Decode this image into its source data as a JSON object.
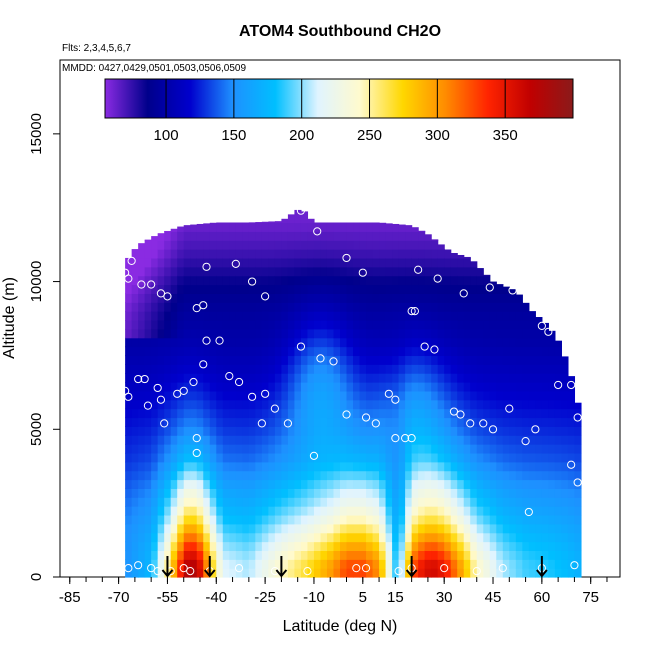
{
  "chart_data": {
    "type": "heatmap",
    "title": "ATOM4 Southbound CH2O",
    "flights_note": "Flts: 2,3,4,5,6,7",
    "dates_note": "MMDD: 0427,0429,0501,0503,0506,0509",
    "xlabel": "Latitude (deg N)",
    "ylabel": "Altitude (m)",
    "xlim": [
      -88,
      84
    ],
    "ylim": [
      0,
      17500
    ],
    "xticks": [
      -85,
      -70,
      -55,
      -40,
      -25,
      -10,
      5,
      15,
      30,
      45,
      60,
      75
    ],
    "yticks": [
      0,
      5000,
      10000,
      15000
    ],
    "colorbar": {
      "range": [
        55,
        400
      ],
      "ticks": [
        100,
        150,
        200,
        250,
        300,
        350
      ],
      "stops": [
        "#8a2be2",
        "#00008b",
        "#0000cd",
        "#1e90ff",
        "#00bfff",
        "#e0f4ff",
        "#fffacd",
        "#ffd700",
        "#ff8c00",
        "#ff2400",
        "#c00000",
        "#8b1a1a"
      ]
    },
    "coverage": {
      "lat_range": [
        -68,
        72
      ],
      "ceiling": [
        [
          -68,
          10600
        ],
        [
          -66,
          11000
        ],
        [
          -63,
          11300
        ],
        [
          -58,
          11600
        ],
        [
          -50,
          11900
        ],
        [
          -40,
          12000
        ],
        [
          -30,
          12000
        ],
        [
          -20,
          12050
        ],
        [
          -14,
          12500
        ],
        [
          -10,
          12000
        ],
        [
          0,
          12000
        ],
        [
          10,
          12000
        ],
        [
          20,
          11900
        ],
        [
          25,
          11600
        ],
        [
          32,
          11000
        ],
        [
          38,
          10800
        ],
        [
          45,
          10000
        ],
        [
          52,
          9700
        ],
        [
          57,
          9000
        ],
        [
          62,
          8500
        ],
        [
          65,
          8000
        ],
        [
          68,
          7200
        ],
        [
          70,
          6400
        ],
        [
          72,
          5400
        ]
      ]
    },
    "profile": {
      "lat": [
        -68,
        -60,
        -54,
        -50,
        -48,
        -45,
        -42,
        -38,
        -30,
        -20,
        -12,
        -5,
        0,
        5,
        10,
        13,
        15,
        17,
        20,
        22,
        26,
        30,
        35,
        40,
        48,
        55,
        62,
        68,
        72
      ],
      "surface": [
        150,
        175,
        270,
        365,
        390,
        360,
        290,
        215,
        205,
        245,
        270,
        300,
        330,
        330,
        305,
        230,
        190,
        210,
        320,
        345,
        365,
        350,
        300,
        245,
        205,
        190,
        185,
        178,
        170
      ]
    },
    "profile_altitudes": [
      0,
      500,
      1000,
      1500,
      2000,
      2500,
      3000,
      3500,
      4000,
      5000,
      6000,
      7000,
      8000,
      9000,
      10000,
      11000,
      12000
    ],
    "profile_decay": [
      1.0,
      0.96,
      0.82,
      0.67,
      0.54,
      0.45,
      0.38,
      0.3,
      0.22,
      0.12,
      0.07,
      0.04,
      0.02,
      0.0,
      0.0,
      0.0,
      0.0
    ],
    "profile_upper": [
      150,
      150,
      148,
      145,
      140,
      135,
      130,
      125,
      122,
      118,
      112,
      105,
      98,
      95,
      85,
      72,
      62
    ],
    "upper_anomaly": [
      {
        "lat": -8,
        "alt": 6500,
        "delta": 40
      },
      {
        "lat": 20,
        "alt": 5500,
        "delta": 30
      }
    ],
    "flight_samples": [
      [
        -68,
        10300
      ],
      [
        -67,
        10100
      ],
      [
        -66,
        10700
      ],
      [
        -63,
        9900
      ],
      [
        -60,
        9900
      ],
      [
        -57,
        9600
      ],
      [
        -55,
        9500
      ],
      [
        -46,
        9100
      ],
      [
        -44,
        9200
      ],
      [
        -43,
        10500
      ],
      [
        -34,
        10600
      ],
      [
        -29,
        10000
      ],
      [
        -25,
        9500
      ],
      [
        -14,
        12400
      ],
      [
        -9,
        11700
      ],
      [
        0,
        10800
      ],
      [
        5,
        10300
      ],
      [
        22,
        10400
      ],
      [
        28,
        10100
      ],
      [
        36,
        9600
      ],
      [
        44,
        9800
      ],
      [
        51,
        9700
      ],
      [
        60,
        8500
      ],
      [
        62,
        8300
      ],
      [
        -68,
        6300
      ],
      [
        -67,
        6100
      ],
      [
        -64,
        6700
      ],
      [
        -62,
        6700
      ],
      [
        -61,
        5800
      ],
      [
        -58,
        6400
      ],
      [
        -57,
        6000
      ],
      [
        -56,
        5200
      ],
      [
        -52,
        6200
      ],
      [
        -50,
        6300
      ],
      [
        -47,
        6600
      ],
      [
        -44,
        7200
      ],
      [
        -43,
        8000
      ],
      [
        -39,
        8000
      ],
      [
        -36,
        6800
      ],
      [
        -33,
        6600
      ],
      [
        -29,
        6100
      ],
      [
        -25,
        6200
      ],
      [
        -22,
        5700
      ],
      [
        -18,
        5200
      ],
      [
        -14,
        7800
      ],
      [
        -8,
        7400
      ],
      [
        -4,
        7300
      ],
      [
        0,
        5500
      ],
      [
        6,
        5400
      ],
      [
        9,
        5200
      ],
      [
        13,
        6200
      ],
      [
        15,
        6000
      ],
      [
        20,
        9000
      ],
      [
        21,
        9000
      ],
      [
        24,
        7800
      ],
      [
        27,
        7700
      ],
      [
        33,
        5600
      ],
      [
        35,
        5500
      ],
      [
        38,
        5200
      ],
      [
        42,
        5200
      ],
      [
        45,
        5000
      ],
      [
        50,
        5700
      ],
      [
        58,
        5000
      ],
      [
        65,
        6500
      ],
      [
        69,
        6500
      ],
      [
        71,
        5400
      ],
      [
        -46,
        4700
      ],
      [
        -46,
        4200
      ],
      [
        -26,
        5200
      ],
      [
        -10,
        4100
      ],
      [
        15,
        4700
      ],
      [
        18,
        4700
      ],
      [
        20,
        4700
      ],
      [
        55,
        4600
      ],
      [
        69,
        3800
      ],
      [
        71,
        3200
      ],
      [
        56,
        2200
      ],
      [
        -67,
        300
      ],
      [
        -64,
        400
      ],
      [
        -60,
        300
      ],
      [
        -58,
        200
      ],
      [
        -54,
        200
      ],
      [
        -50,
        300
      ],
      [
        -48,
        200
      ],
      [
        -42,
        200
      ],
      [
        -33,
        300
      ],
      [
        -22,
        200
      ],
      [
        -12,
        200
      ],
      [
        3,
        300
      ],
      [
        6,
        300
      ],
      [
        16,
        200
      ],
      [
        20,
        300
      ],
      [
        30,
        300
      ],
      [
        40,
        200
      ],
      [
        48,
        300
      ],
      [
        60,
        300
      ],
      [
        70,
        400
      ]
    ],
    "profile_markers_lat": [
      -55,
      -42,
      -20,
      20,
      60
    ]
  }
}
